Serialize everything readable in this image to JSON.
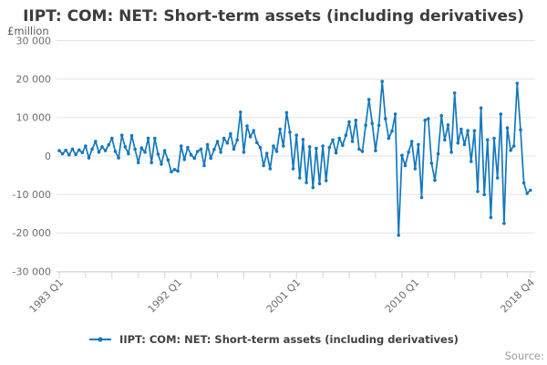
{
  "title": "IIPT: COM: NET: Short-term assets (including derivatives)",
  "y_axis_unit": "£million",
  "source_label": "Source:",
  "legend": {
    "label": "IIPT: COM: NET: Short-term assets (including derivatives)",
    "marker": "line-with-dot"
  },
  "colors": {
    "line": "#1478be",
    "grid": "#e3e3e3",
    "axis": "#c9d7e8",
    "tick_text": "#6e6e6e",
    "title_text": "#3c3c3c",
    "legend_text": "#414042",
    "source_text": "#9b9b9b"
  },
  "chart_data": {
    "type": "line",
    "title": "IIPT: COM: NET: Short-term assets (including derivatives)",
    "xlabel": "",
    "ylabel": "£million",
    "ylim": [
      -30000,
      30000
    ],
    "grid": true,
    "legend_position": "bottom",
    "frequency": "quarterly",
    "start_period": "1983 Q1",
    "end_period": "2018 Q4",
    "x_tick_labels": [
      {
        "index": 0,
        "label": "1983 Q1"
      },
      {
        "index": 36,
        "label": "1992 Q1"
      },
      {
        "index": 72,
        "label": "2001 Q1"
      },
      {
        "index": 108,
        "label": "2010 Q1"
      },
      {
        "index": 143,
        "label": "2018 Q4"
      }
    ],
    "minor_tick_every_quarters": 8,
    "y_ticks": [
      {
        "value": 30000,
        "label": "30 000"
      },
      {
        "value": 20000,
        "label": "20 000"
      },
      {
        "value": 10000,
        "label": "10 000"
      },
      {
        "value": 0,
        "label": "0"
      },
      {
        "value": -10000,
        "label": "-10 000"
      },
      {
        "value": -20000,
        "label": "-20 000"
      },
      {
        "value": -30000,
        "label": "-30 000"
      }
    ],
    "series": [
      {
        "name": "IIPT: COM: NET: Short-term assets (including derivatives)",
        "values": [
          1400,
          600,
          1500,
          300,
          1800,
          400,
          1600,
          900,
          2600,
          -500,
          1800,
          3800,
          1000,
          2400,
          1400,
          2900,
          4600,
          1200,
          -500,
          5400,
          2400,
          600,
          5300,
          1800,
          -1700,
          2100,
          1000,
          4600,
          -1700,
          4600,
          500,
          -2100,
          1400,
          -1000,
          -4100,
          -3500,
          -3900,
          2600,
          -900,
          2200,
          300,
          -600,
          1200,
          1800,
          -2500,
          3000,
          -600,
          1700,
          3800,
          1000,
          4600,
          3400,
          5800,
          1800,
          4200,
          11400,
          1000,
          7800,
          5000,
          6600,
          3500,
          2200,
          -2500,
          700,
          -3300,
          2600,
          1200,
          7000,
          2600,
          11300,
          6200,
          -3300,
          5400,
          -5700,
          4300,
          -6900,
          2400,
          -8200,
          2000,
          -7200,
          2600,
          -6400,
          2200,
          4200,
          800,
          4600,
          2800,
          5400,
          8900,
          3800,
          9300,
          1800,
          1200,
          8000,
          14700,
          8500,
          1400,
          8000,
          19400,
          9700,
          4600,
          6500,
          10900,
          -20600,
          200,
          -2500,
          1000,
          3800,
          -3300,
          3000,
          -10800,
          9300,
          9700,
          -1900,
          -6300,
          600,
          10500,
          4200,
          8100,
          1000,
          16400,
          3400,
          7000,
          3000,
          6600,
          -1400,
          6600,
          -9200,
          12500,
          -10000,
          4200,
          -16000,
          4600,
          -5700,
          10900,
          -17500,
          7300,
          1500,
          2600,
          18900,
          6800,
          -7000,
          -9700,
          -8900
        ]
      }
    ]
  }
}
